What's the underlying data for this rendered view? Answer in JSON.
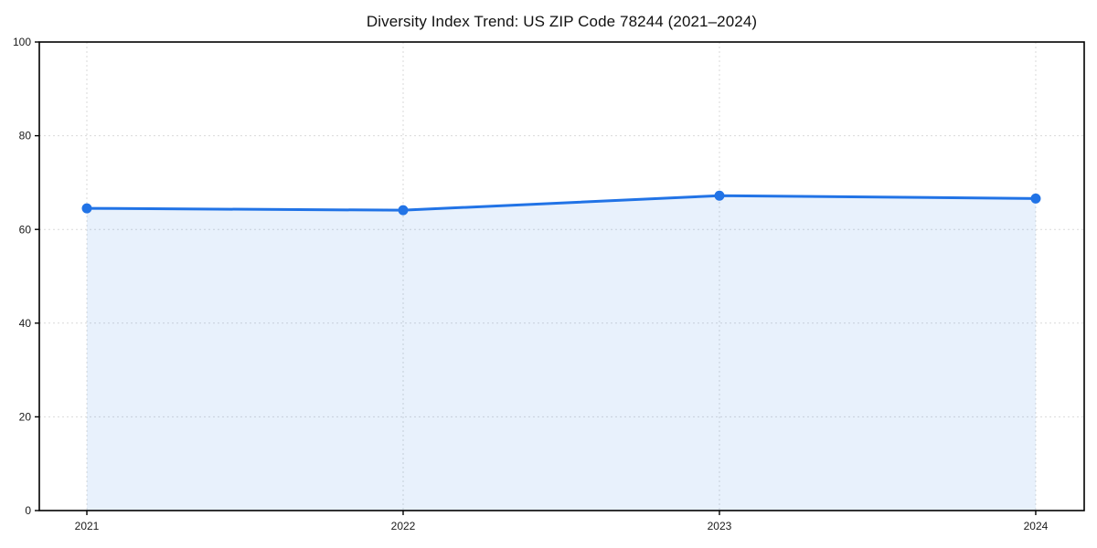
{
  "chart_data": {
    "type": "area",
    "title": "Diversity Index Trend: US ZIP Code 78244 (2021–2024)",
    "categories": [
      "2021",
      "2022",
      "2023",
      "2024"
    ],
    "series": [
      {
        "name": "Diversity Index",
        "values": [
          64.5,
          64.1,
          67.2,
          66.6
        ]
      }
    ],
    "xlabel": "",
    "ylabel": "",
    "ylim": [
      0,
      100
    ],
    "y_ticks": [
      0,
      20,
      40,
      60,
      80,
      100
    ],
    "grid": {
      "style": "dashed",
      "horizontal": true,
      "vertical": true
    },
    "legend": "none",
    "area_fill_extent": "between first and last data points only",
    "colors": {
      "line": "#2173e6",
      "marker": "#2173e6",
      "area_fill": "#2173e6",
      "area_opacity": 0.1,
      "grid": "#d9d9d9",
      "spine": "#000000",
      "tick_text": "#1a1a1a",
      "title_text": "#111111",
      "background": "#ffffff"
    }
  }
}
